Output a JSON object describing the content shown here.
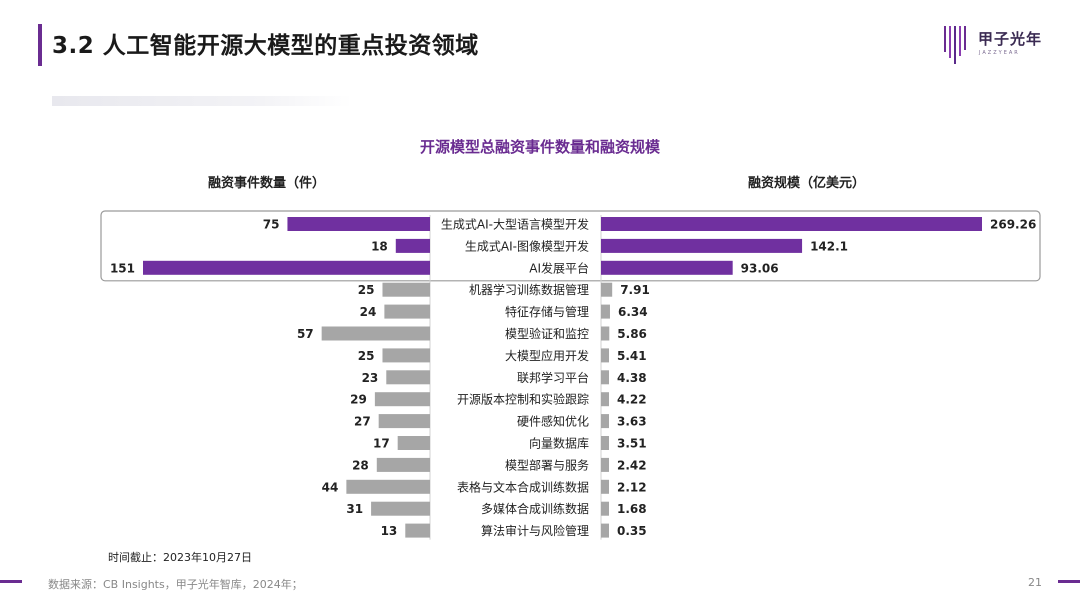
{
  "page": {
    "title": "3.2 人工智能开源大模型的重点投资领域",
    "note": "时间截止：2023年10月27日",
    "source": "数据来源：CB Insights，甲子光年智库，2024年；",
    "page_number": "21"
  },
  "logo": {
    "name": "甲子光年",
    "subtitle": "JAZZYEAR"
  },
  "colors": {
    "accent": "#6a2c91",
    "highlight_bar": "#7030a0",
    "other_bar": "#a6a6a6",
    "highlight_box": "#9a9a9a"
  },
  "chart_data": {
    "type": "bar",
    "title": "开源模型总融资事件数量和融资规模",
    "layout": "butterfly",
    "categories": [
      "生成式AI-大型语言模型开发",
      "生成式AI-图像模型开发",
      "AI发展平台",
      "机器学习训练数据管理",
      "特征存储与管理",
      "模型验证和监控",
      "大模型应用开发",
      "联邦学习平台",
      "开源版本控制和实验跟踪",
      "硬件感知优化",
      "向量数据库",
      "模型部署与服务",
      "表格与文本合成训练数据",
      "多媒体合成训练数据",
      "算法审计与风险管理"
    ],
    "highlighted_categories": [
      "生成式AI-大型语言模型开发",
      "生成式AI-图像模型开发",
      "AI发展平台"
    ],
    "series": [
      {
        "name": "融资事件数量（件）",
        "side": "left",
        "values": [
          75,
          18,
          151,
          25,
          24,
          57,
          25,
          23,
          29,
          27,
          17,
          28,
          44,
          31,
          13
        ],
        "labels": [
          "75",
          "18",
          "151",
          "25",
          "24",
          "57",
          "25",
          "23",
          "29",
          "27",
          "17",
          "28",
          "44",
          "31",
          "13"
        ]
      },
      {
        "name": "融资规模（亿美元）",
        "side": "right",
        "values": [
          269.26,
          142.1,
          93.06,
          7.91,
          6.34,
          5.86,
          5.41,
          4.38,
          4.22,
          3.63,
          3.51,
          2.42,
          2.12,
          1.68,
          0.35
        ],
        "labels": [
          "269.26",
          "142.1",
          "93.06",
          "7.91",
          "6.34",
          "5.86",
          "5.41",
          "4.38",
          "4.22",
          "3.63",
          "3.51",
          "2.42",
          "2.12",
          "1.68",
          "0.35"
        ]
      }
    ]
  }
}
